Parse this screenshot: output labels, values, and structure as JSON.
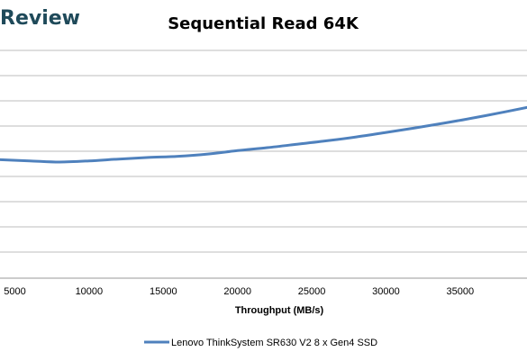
{
  "logo": {
    "text": "Review"
  },
  "chart_data": {
    "type": "line",
    "title": "Sequential Read 64K",
    "xlabel": "Throughput (MB/s)",
    "ylabel": "",
    "x_ticks": [
      "5000",
      "10000",
      "15000",
      "20000",
      "25000",
      "30000",
      "35000"
    ],
    "x_tick_values": [
      5000,
      10000,
      15000,
      20000,
      25000,
      30000,
      35000
    ],
    "xlim": [
      4000,
      39500
    ],
    "ylim": [
      0,
      1
    ],
    "grid": true,
    "legend_position": "bottom",
    "series": [
      {
        "name": "Lenovo ThinkSystem SR630 V2 8 x Gen4 SSD",
        "color": "#4f81bd",
        "x": [
          4000,
          6000,
          8000,
          10000,
          12000,
          14000,
          16000,
          18000,
          20000,
          22000,
          24000,
          26000,
          28000,
          30000,
          32000,
          34000,
          36000,
          38000,
          39500
        ],
        "y": [
          0.52,
          0.515,
          0.51,
          0.515,
          0.523,
          0.53,
          0.535,
          0.545,
          0.56,
          0.573,
          0.588,
          0.603,
          0.62,
          0.64,
          0.66,
          0.682,
          0.705,
          0.73,
          0.75
        ]
      }
    ]
  }
}
